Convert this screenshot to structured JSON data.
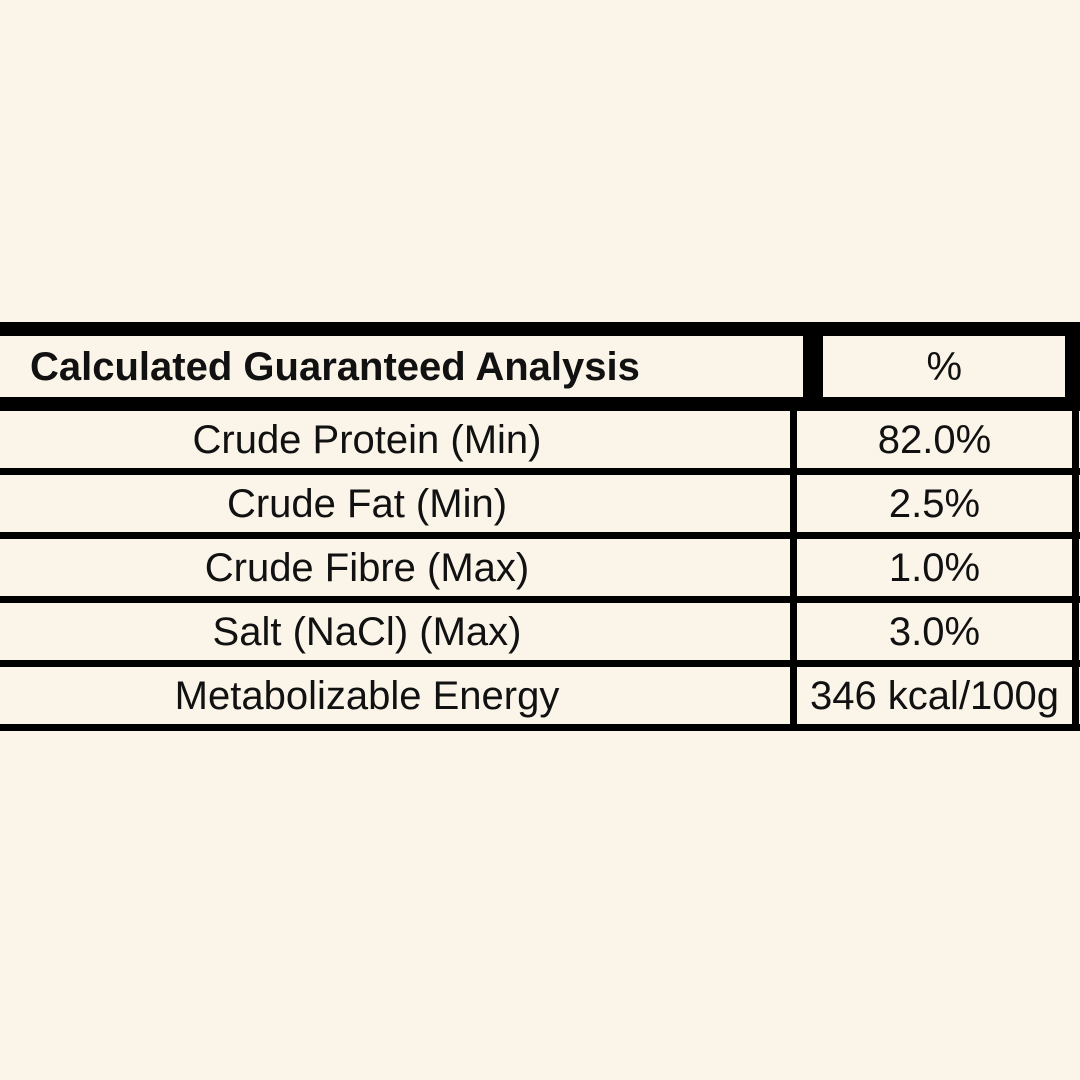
{
  "colors": {
    "background": "#faf4e9",
    "line": "#000000",
    "text": "#111111"
  },
  "table": {
    "header": {
      "label": "Calculated Guaranteed Analysis",
      "unit": "%"
    },
    "rows": [
      {
        "label": "Crude Protein (Min)",
        "value": "82.0%"
      },
      {
        "label": "Crude Fat (Min)",
        "value": "2.5%"
      },
      {
        "label": "Crude Fibre (Max)",
        "value": "1.0%"
      },
      {
        "label": "Salt (NaCl) (Max)",
        "value": "3.0%"
      },
      {
        "label": "Metabolizable Energy",
        "value": "346 kcal/100g"
      }
    ]
  }
}
